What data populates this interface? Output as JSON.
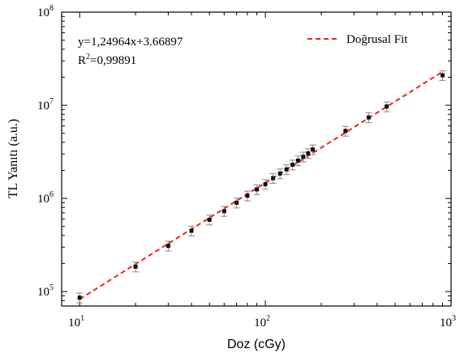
{
  "chart_data": {
    "type": "scatter",
    "xlabel": "Doz (cGy)",
    "ylabel": "TL Yanıtı (a.u.)",
    "x_scale": "log",
    "y_scale": "log",
    "xlim": [
      8,
      1000
    ],
    "ylim": [
      70000,
      100000000
    ],
    "x_ticks": [
      {
        "value": 10,
        "base": "10",
        "exp": "1"
      },
      {
        "value": 100,
        "base": "10",
        "exp": "2"
      },
      {
        "value": 1000,
        "base": "10",
        "exp": "3"
      }
    ],
    "y_ticks": [
      {
        "value": 100000,
        "base": "10",
        "exp": "5"
      },
      {
        "value": 1000000,
        "base": "10",
        "exp": "6"
      },
      {
        "value": 10000000,
        "base": "10",
        "exp": "7"
      },
      {
        "value": 100000000,
        "base": "10",
        "exp": "8"
      }
    ],
    "grid": false,
    "legend_position": "top-right",
    "legend_label": "Doğrusal Fit",
    "annotation": {
      "equation": "y=1,24964x+3.66897",
      "r2_prefix": "R",
      "r2_sup": "2",
      "r2_value": "=0,99891"
    },
    "fit": {
      "slope": 1.24964,
      "intercept": 3.66897,
      "x_range": [
        10,
        900
      ],
      "color": "#ee2222"
    },
    "points": {
      "color": "#111111",
      "errorbar_color": "#888888",
      "x": [
        10,
        20,
        30,
        40,
        50,
        60,
        70,
        80,
        90,
        100,
        110,
        120,
        130,
        140,
        150,
        160,
        170,
        180,
        270,
        360,
        450,
        900
      ],
      "y": [
        86000,
        185000,
        310000,
        450000,
        590000,
        730000,
        900000,
        1070000,
        1250000,
        1420000,
        1650000,
        1850000,
        2050000,
        2300000,
        2550000,
        2800000,
        3050000,
        3350000,
        5300000,
        7400000,
        9700000,
        21000000
      ],
      "yerr_fraction": 0.12
    }
  }
}
